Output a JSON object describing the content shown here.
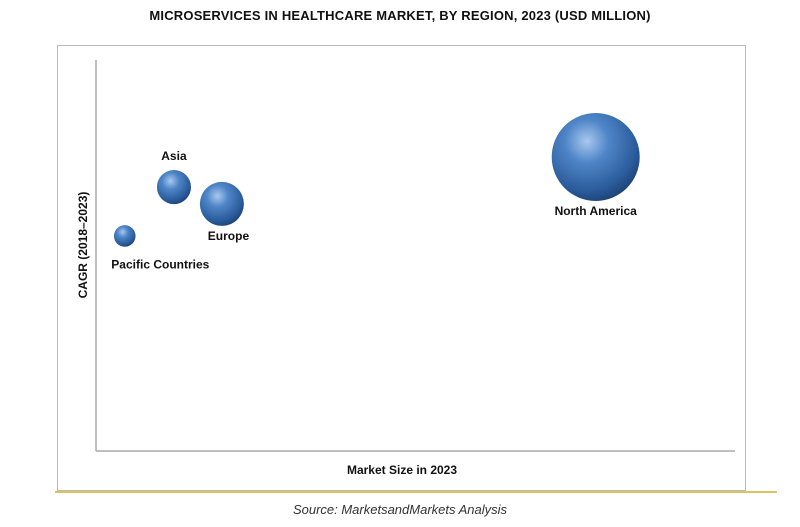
{
  "chart_data": {
    "type": "scatter",
    "subtype": "bubble",
    "title": "MICROSERVICES IN HEALTHCARE MARKET, BY REGION, 2023 (USD MILLION)",
    "xlabel": "Market Size in 2023",
    "ylabel": "CAGR (2018–2023)",
    "xlim": [
      0,
      100
    ],
    "ylim": [
      0,
      100
    ],
    "grid": false,
    "legend": "none",
    "bubble_color": "#3a6fb0",
    "points": [
      {
        "label": "Pacific Countries",
        "x": 4.5,
        "y": 55,
        "size": 6
      },
      {
        "label": "Asia",
        "x": 12.2,
        "y": 67.5,
        "size": 15
      },
      {
        "label": "Europe",
        "x": 19.7,
        "y": 63.2,
        "size": 25
      },
      {
        "label": "North America",
        "x": 78.2,
        "y": 75.2,
        "size": 100
      }
    ]
  },
  "source": "Source: MarketsandMarkets Analysis"
}
